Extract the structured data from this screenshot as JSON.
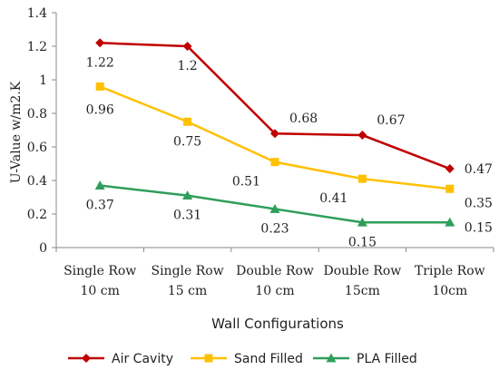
{
  "chart_data": {
    "type": "line",
    "categories": [
      [
        "Single Row",
        "10 cm"
      ],
      [
        "Single Row",
        "15 cm"
      ],
      [
        "Double Row",
        "10 cm"
      ],
      [
        "Double Row",
        "15cm"
      ],
      [
        "Triple Row",
        "10cm"
      ]
    ],
    "series": [
      {
        "name": "Air Cavity",
        "color": "#c00000",
        "marker": "diamond",
        "values": [
          1.22,
          1.2,
          0.68,
          0.67,
          0.47
        ],
        "labels": [
          "1.22",
          "1.2",
          "0.68",
          "0.67",
          "0.47"
        ]
      },
      {
        "name": "Sand Filled",
        "color": "#ffc000",
        "marker": "square",
        "values": [
          0.96,
          0.75,
          0.51,
          0.41,
          0.35
        ],
        "labels": [
          "0.96",
          "0.75",
          "0.51",
          "0.41",
          "0.35"
        ]
      },
      {
        "name": "PLA Filled",
        "color": "#2e9e5a",
        "marker": "triangle",
        "values": [
          0.37,
          0.31,
          0.23,
          0.15,
          0.15
        ],
        "labels": [
          "0.37",
          "0.31",
          "0.23",
          "0.15",
          "0.15"
        ]
      }
    ],
    "ylabel": "U-Value w/m2.K",
    "xlabel": "Wall Configurations",
    "ylim": [
      0,
      1.4
    ],
    "yticks": [
      "0",
      "0.2",
      "0.4",
      "0.6",
      "0.8",
      "1",
      "1.2",
      "1.4"
    ],
    "grid": false,
    "legend_position": "bottom"
  }
}
